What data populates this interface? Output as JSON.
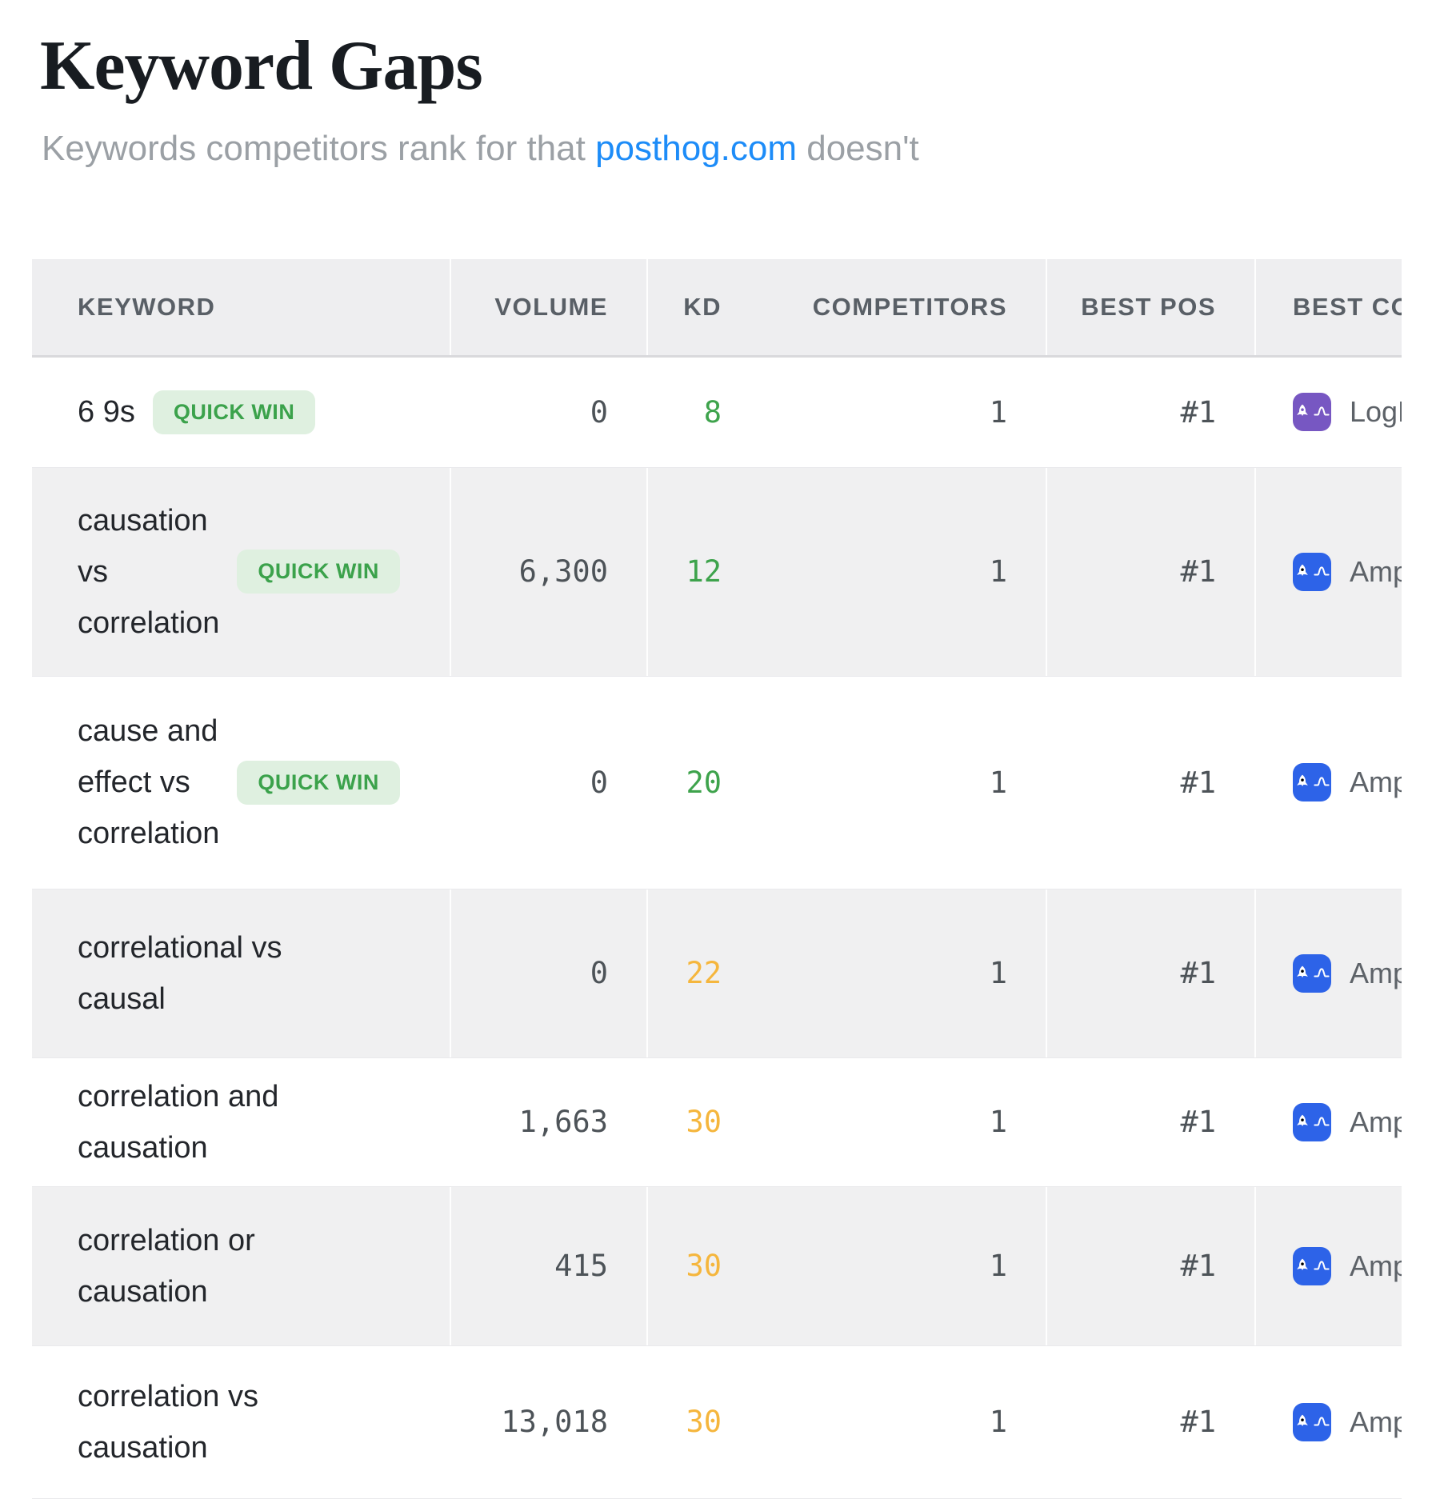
{
  "page": {
    "title": "Keyword Gaps",
    "subtitle_prefix": "Keywords competitors rank for that ",
    "subtitle_link": "posthog.com",
    "subtitle_suffix": " doesn't"
  },
  "colors": {
    "link_blue": "#1d8cf8",
    "kd_easy_green": "#3ea34c",
    "kd_medium_amber": "#f5b63d",
    "badge_bg": "#dff0e0",
    "badge_text": "#3ba24b",
    "header_bg": "#eeeef0",
    "zebra_row_bg": "#f0f0f1"
  },
  "table": {
    "columns": [
      "KEYWORD",
      "VOLUME",
      "KD",
      "COMPETITORS",
      "BEST POS",
      "BEST COMPETITOR"
    ],
    "quick_win_label": "QUICK WIN",
    "rows": [
      {
        "keyword": "6 9s",
        "quick_win": true,
        "volume": "0",
        "kd": "8",
        "kd_level": "easy",
        "competitors": "1",
        "best_pos": "#1",
        "best_competitor": {
          "name": "LogRocket",
          "icon": "rocket-icon",
          "color": "#7757c2"
        }
      },
      {
        "keyword": "causation\nvs\ncorrelation",
        "quick_win": true,
        "volume": "6,300",
        "kd": "12",
        "kd_level": "easy",
        "competitors": "1",
        "best_pos": "#1",
        "best_competitor": {
          "name": "Amplitude",
          "icon": "amplitude-icon",
          "color": "#2d63e8"
        }
      },
      {
        "keyword": "cause and\neffect vs\ncorrelation",
        "quick_win": true,
        "volume": "0",
        "kd": "20",
        "kd_level": "easy",
        "competitors": "1",
        "best_pos": "#1",
        "best_competitor": {
          "name": "Amplitude",
          "icon": "amplitude-icon",
          "color": "#2d63e8"
        }
      },
      {
        "keyword": "correlational vs\ncausal",
        "quick_win": false,
        "volume": "0",
        "kd": "22",
        "kd_level": "medium",
        "competitors": "1",
        "best_pos": "#1",
        "best_competitor": {
          "name": "Amplitude",
          "icon": "amplitude-icon",
          "color": "#2d63e8"
        }
      },
      {
        "keyword": "correlation and\ncausation",
        "quick_win": false,
        "volume": "1,663",
        "kd": "30",
        "kd_level": "medium",
        "competitors": "1",
        "best_pos": "#1",
        "best_competitor": {
          "name": "Amplitude",
          "icon": "amplitude-icon",
          "color": "#2d63e8"
        }
      },
      {
        "keyword": "correlation or\ncausation",
        "quick_win": false,
        "volume": "415",
        "kd": "30",
        "kd_level": "medium",
        "competitors": "1",
        "best_pos": "#1",
        "best_competitor": {
          "name": "Amplitude",
          "icon": "amplitude-icon",
          "color": "#2d63e8"
        }
      },
      {
        "keyword": "correlation vs\ncausation",
        "quick_win": false,
        "volume": "13,018",
        "kd": "30",
        "kd_level": "medium",
        "competitors": "1",
        "best_pos": "#1",
        "best_competitor": {
          "name": "Amplitude",
          "icon": "amplitude-icon",
          "color": "#2d63e8"
        }
      }
    ]
  }
}
